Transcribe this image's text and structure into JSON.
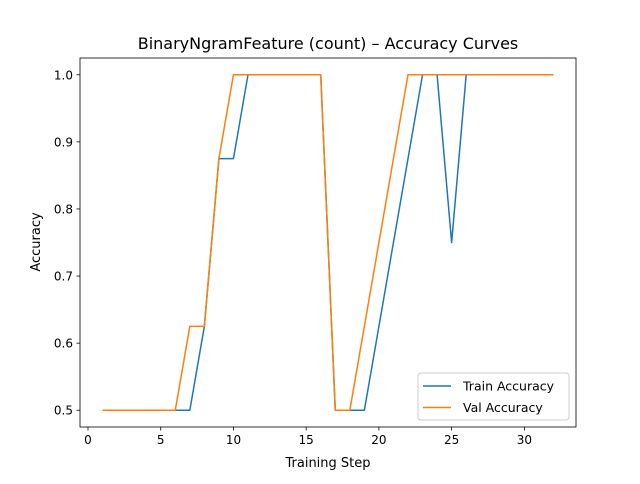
{
  "chart_data": {
    "type": "line",
    "title": "BinaryNgramFeature (count) – Accuracy Curves",
    "xlabel": "Training Step",
    "ylabel": "Accuracy",
    "xlim": [
      -0.55,
      33.55
    ],
    "ylim": [
      0.475,
      1.025
    ],
    "xticks": [
      0,
      5,
      10,
      15,
      20,
      25,
      30
    ],
    "yticks": [
      0.5,
      0.6,
      0.7,
      0.8,
      0.9,
      1.0
    ],
    "x_tick_labels": [
      "0",
      "5",
      "10",
      "15",
      "20",
      "25",
      "30"
    ],
    "y_tick_labels": [
      "0.5",
      "0.6",
      "0.7",
      "0.8",
      "0.9",
      "1.0"
    ],
    "grid": false,
    "legend_position": "lower-right",
    "x": [
      1,
      2,
      3,
      4,
      5,
      6,
      7,
      8,
      9,
      10,
      11,
      12,
      13,
      14,
      15,
      16,
      17,
      18,
      19,
      20,
      21,
      22,
      23,
      24,
      25,
      26,
      27,
      28,
      29,
      30,
      31,
      32
    ],
    "series": [
      {
        "name": "Train Accuracy",
        "color": "#1f77b4",
        "values": [
          0.5,
          0.5,
          0.5,
          0.5,
          0.5,
          0.5,
          0.5,
          0.625,
          0.875,
          0.875,
          1.0,
          1.0,
          1.0,
          1.0,
          1.0,
          1.0,
          0.5,
          0.5,
          0.5,
          0.625,
          0.75,
          0.875,
          1.0,
          1.0,
          0.75,
          1.0,
          1.0,
          1.0,
          1.0,
          1.0,
          1.0,
          1.0
        ]
      },
      {
        "name": "Val Accuracy",
        "color": "#ff7f0e",
        "values": [
          0.5,
          0.5,
          0.5,
          0.5,
          0.5,
          0.5,
          0.625,
          0.625,
          0.875,
          1.0,
          1.0,
          1.0,
          1.0,
          1.0,
          1.0,
          1.0,
          0.5,
          0.5,
          0.625,
          0.75,
          0.875,
          1.0,
          1.0,
          1.0,
          1.0,
          1.0,
          1.0,
          1.0,
          1.0,
          1.0,
          1.0,
          1.0
        ]
      }
    ]
  }
}
